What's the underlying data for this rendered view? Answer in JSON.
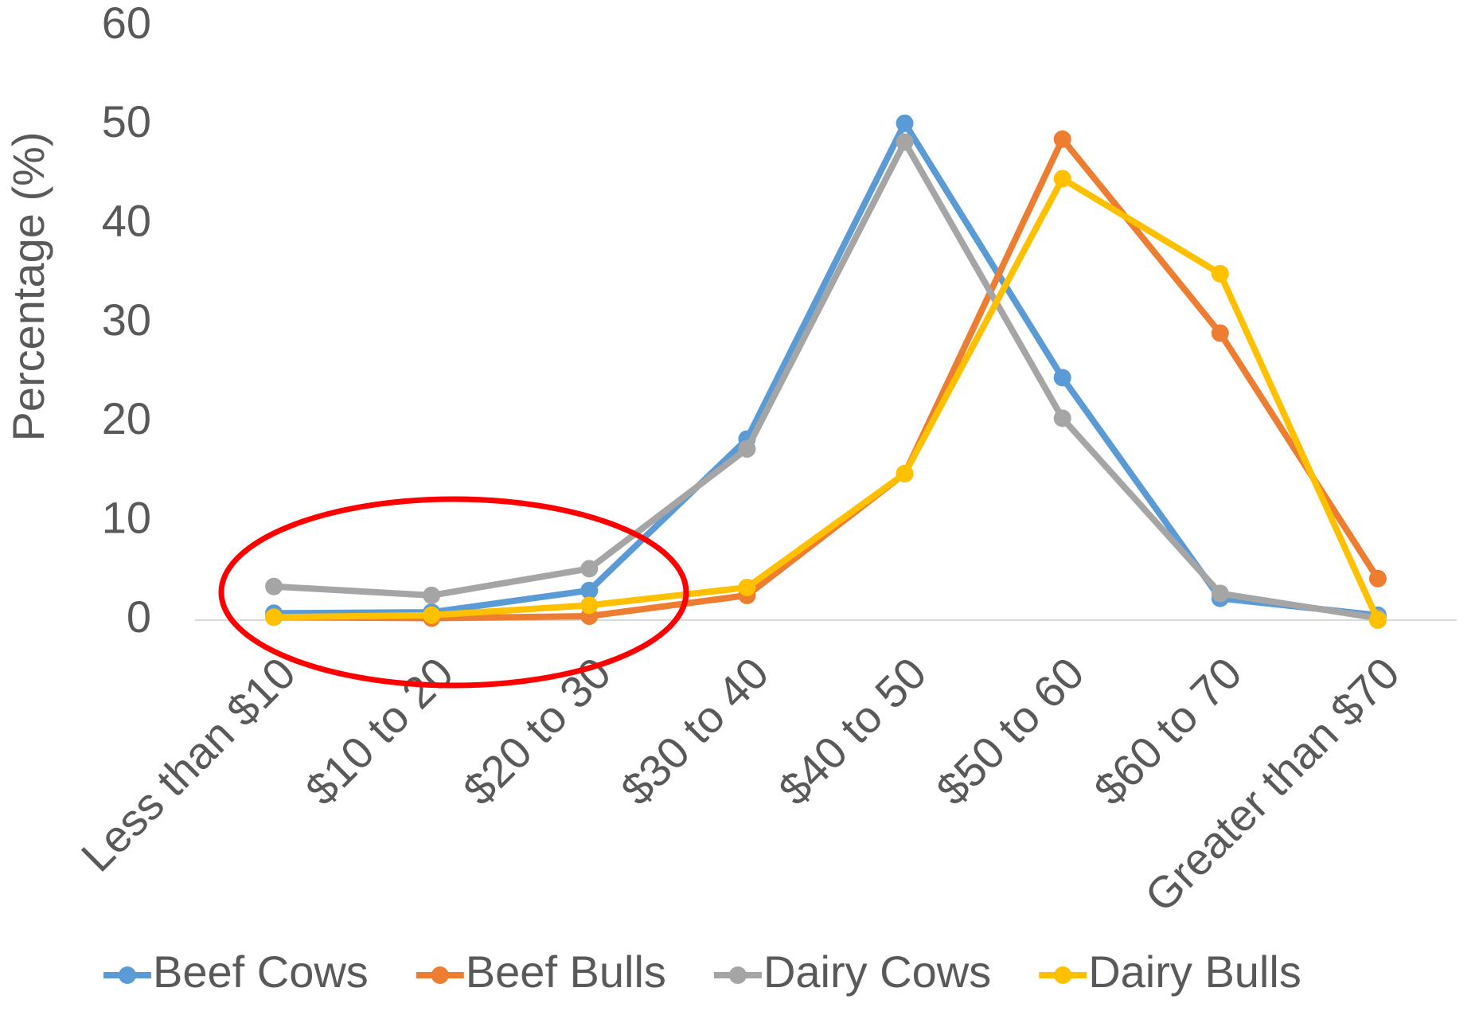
{
  "chart_data": {
    "type": "line",
    "y_label": "Percentage (%)",
    "categories": [
      "Less than $10",
      "$10 to 20",
      "$20 to 30",
      "$30 to 40",
      "$40 to 50",
      "$50 to 60",
      "$60 to 70",
      "Greater than $70"
    ],
    "series": [
      {
        "name": "Beef Cows",
        "color": "#5b9bd5",
        "values": [
          0.7,
          0.8,
          3,
          18.3,
          50.2,
          24.5,
          2.2,
          0.5
        ]
      },
      {
        "name": "Beef Bulls",
        "color": "#ed7d31",
        "values": [
          0.3,
          0.2,
          0.4,
          2.5,
          14.8,
          48.6,
          29,
          4.2
        ]
      },
      {
        "name": "Dairy Cows",
        "color": "#a5a5a5",
        "values": [
          3.4,
          2.5,
          5.2,
          17.3,
          48.3,
          20.4,
          2.7,
          0.2
        ]
      },
      {
        "name": "Dairy Bulls",
        "color": "#ffc000",
        "values": [
          0.3,
          0.5,
          1.5,
          3.3,
          14.8,
          44.6,
          35,
          0
        ]
      }
    ],
    "ylim": [
      0,
      60
    ],
    "yticks": [
      0,
      10,
      20,
      30,
      40,
      50,
      60
    ],
    "grid": false,
    "legend": "bottom"
  }
}
